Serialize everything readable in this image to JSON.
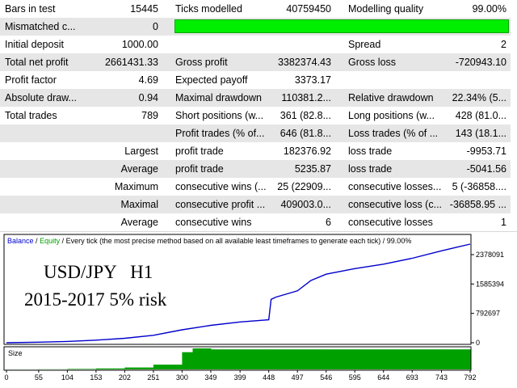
{
  "report": {
    "bars_in_test": {
      "label": "Bars in test",
      "value": "15445"
    },
    "ticks_modelled": {
      "label": "Ticks modelled",
      "value": "40759450"
    },
    "modelling_quality": {
      "label": "Modelling quality",
      "value": "99.00%",
      "fraction": 0.99
    },
    "mismatched": {
      "label": "Mismatched c...",
      "value": "0"
    },
    "initial_deposit": {
      "label": "Initial deposit",
      "value": "1000.00"
    },
    "spread": {
      "label": "Spread",
      "value": "2"
    },
    "total_net_profit": {
      "label": "Total net profit",
      "value": "2661431.33"
    },
    "gross_profit": {
      "label": "Gross profit",
      "value": "3382374.43"
    },
    "gross_loss": {
      "label": "Gross loss",
      "value": "-720943.10"
    },
    "profit_factor": {
      "label": "Profit factor",
      "value": "4.69"
    },
    "expected_payoff": {
      "label": "Expected payoff",
      "value": "3373.17"
    },
    "absolute_drawdown": {
      "label": "Absolute draw...",
      "value": "0.94"
    },
    "maximal_drawdown": {
      "label": "Maximal drawdown",
      "value": "110381.2..."
    },
    "relative_drawdown": {
      "label": "Relative drawdown",
      "value": "22.34% (5..."
    },
    "total_trades": {
      "label": "Total trades",
      "value": "789"
    },
    "short_positions": {
      "label": "Short positions (w...",
      "value": "361 (82.8..."
    },
    "long_positions": {
      "label": "Long positions (w...",
      "value": "428 (81.0..."
    },
    "profit_trades": {
      "label": "Profit trades (% of...",
      "value": "646 (81.8..."
    },
    "loss_trades": {
      "label": "Loss trades (% of ...",
      "value": "143 (18.1..."
    },
    "largest": {
      "label": "Largest",
      "p_label": "profit trade",
      "p_value": "182376.92",
      "l_label": "loss trade",
      "l_value": "-9953.71"
    },
    "average": {
      "label": "Average",
      "p_label": "profit trade",
      "p_value": "5235.87",
      "l_label": "loss trade",
      "l_value": "-5041.56"
    },
    "maximum": {
      "label": "Maximum",
      "p_label": "consecutive wins (...",
      "p_value": "25 (22909...",
      "l_label": "consecutive losses...",
      "l_value": "5 (-36858...."
    },
    "maximal": {
      "label": "Maximal",
      "p_label": "consecutive profit ...",
      "p_value": "409003.0...",
      "l_label": "consecutive loss (c...",
      "l_value": "-36858.95 ..."
    },
    "average_consec": {
      "label": "Average",
      "p_label": "consecutive wins",
      "p_value": "6",
      "l_label": "consecutive losses",
      "l_value": "1"
    }
  },
  "graph_header": {
    "balance": "Balance",
    "sep1": "/",
    "equity": "Equity",
    "rest": "/ Every tick (the most precise method based on all available least timeframes to generate each tick) / 99.00%"
  },
  "overlay": {
    "line1": "USD/JPY   H1",
    "line2": "2015-2017 5% risk"
  },
  "colors": {
    "balance": "#0000cc",
    "equity": "#00a000",
    "size_bar": "#00a000",
    "quality_bar": "#00ee00"
  },
  "chart_data": {
    "type": "line",
    "x_ticks": [
      "0",
      "55",
      "104",
      "153",
      "202",
      "251",
      "300",
      "349",
      "399",
      "448",
      "497",
      "546",
      "595",
      "644",
      "693",
      "743",
      "792"
    ],
    "y_ticks": [
      "2378091",
      "1585394",
      "792697",
      "0"
    ],
    "ylim": [
      0,
      2661431
    ],
    "xlim": [
      0,
      792
    ],
    "series": [
      {
        "name": "Balance",
        "x": [
          0,
          55,
          104,
          153,
          202,
          251,
          300,
          349,
          399,
          448,
          452,
          460,
          497,
          520,
          546,
          595,
          644,
          693,
          743,
          770,
          792
        ],
        "y": [
          1000,
          15000,
          35000,
          70000,
          120000,
          200000,
          350000,
          470000,
          560000,
          620000,
          1170000,
          1230000,
          1400000,
          1680000,
          1850000,
          2000000,
          2120000,
          2280000,
          2480000,
          2580000,
          2661431
        ]
      },
      {
        "name": "Size",
        "x": [
          0,
          55,
          104,
          153,
          202,
          251,
          300,
          318,
          349,
          399,
          448,
          497,
          546,
          595,
          644,
          693,
          743,
          792
        ],
        "y": [
          0.01,
          0.02,
          0.05,
          0.1,
          0.2,
          0.5,
          1.8,
          2.2,
          2.1,
          2.1,
          2.1,
          2.1,
          2.1,
          2.1,
          2.1,
          2.1,
          2.1,
          2.1
        ]
      }
    ]
  }
}
